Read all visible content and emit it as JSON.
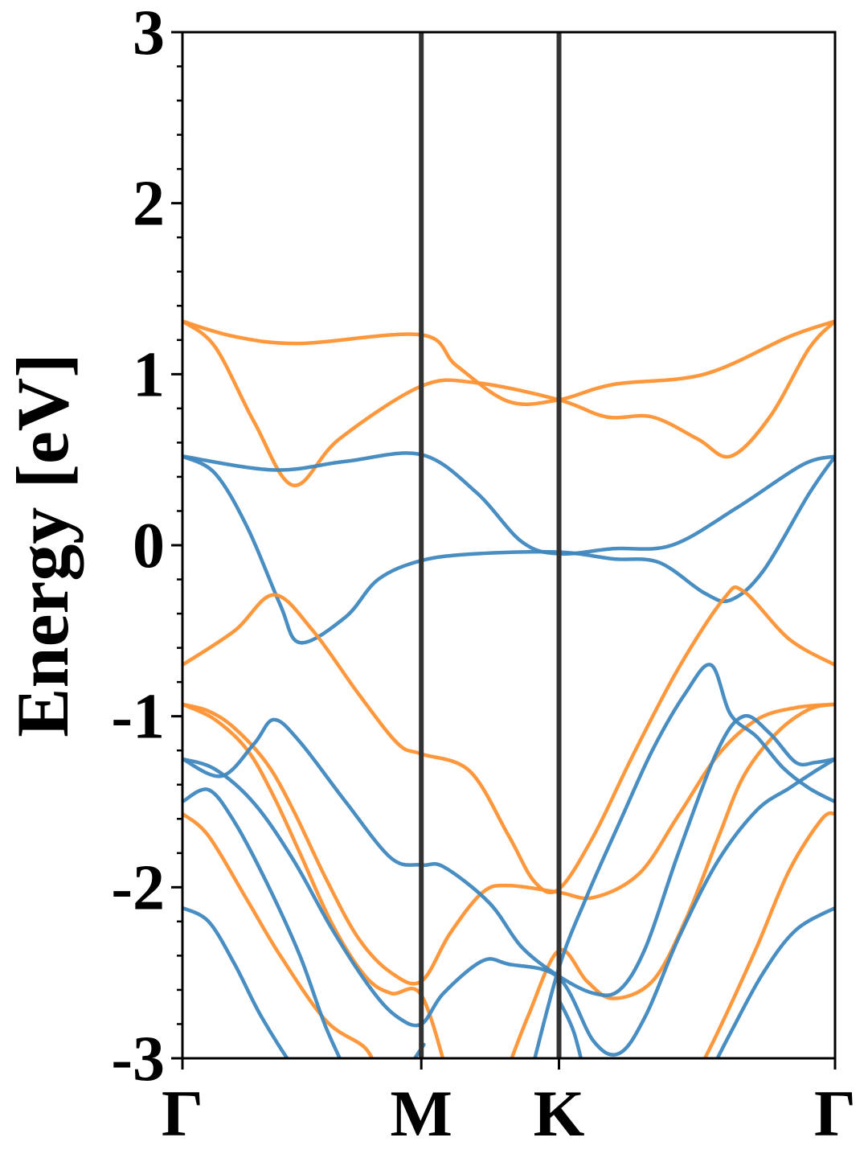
{
  "chart_data": {
    "type": "line",
    "title": "",
    "ylabel": "Energy [eV]",
    "xlabel": "",
    "ylim": [
      -3,
      3
    ],
    "xlim": [
      0,
      1
    ],
    "grid": false,
    "legend": "none",
    "colors": {
      "spin_a": "#3f88bf",
      "spin_b": "#ff9233",
      "kpath_line": "#333333"
    },
    "yticks": [
      -3,
      -2,
      -1,
      0,
      1,
      2,
      3
    ],
    "ytick_labels": [
      "-3",
      "-2",
      "-1",
      "0",
      "1",
      "2",
      "3"
    ],
    "xticks": [
      {
        "label": "Γ",
        "pos": 0.0
      },
      {
        "label": "M",
        "pos": 0.366
      },
      {
        "label": "K",
        "pos": 0.577
      },
      {
        "label": "Γ",
        "pos": 1.0
      }
    ],
    "series": [
      {
        "group": "spin_b",
        "points": [
          [
            0,
            1.31
          ],
          [
            0.08,
            1.22
          ],
          [
            0.18,
            1.18
          ],
          [
            0.366,
            1.23
          ],
          [
            0.42,
            1.05
          ],
          [
            0.5,
            0.84
          ],
          [
            0.577,
            0.85
          ],
          [
            0.66,
            0.94
          ],
          [
            0.8,
            1.0
          ],
          [
            0.93,
            1.22
          ],
          [
            1,
            1.31
          ]
        ]
      },
      {
        "group": "spin_b",
        "points": [
          [
            0,
            1.31
          ],
          [
            0.05,
            1.16
          ],
          [
            0.11,
            0.72
          ],
          [
            0.17,
            0.35
          ],
          [
            0.24,
            0.62
          ],
          [
            0.366,
            0.93
          ],
          [
            0.45,
            0.95
          ],
          [
            0.577,
            0.85
          ],
          [
            0.65,
            0.75
          ],
          [
            0.72,
            0.75
          ],
          [
            0.79,
            0.62
          ],
          [
            0.84,
            0.52
          ],
          [
            0.9,
            0.75
          ],
          [
            0.96,
            1.15
          ],
          [
            1,
            1.31
          ]
        ]
      },
      {
        "group": "spin_a",
        "points": [
          [
            0,
            0.52
          ],
          [
            0.14,
            0.44
          ],
          [
            0.25,
            0.49
          ],
          [
            0.366,
            0.53
          ],
          [
            0.45,
            0.31
          ],
          [
            0.52,
            0.02
          ],
          [
            0.577,
            -0.05
          ],
          [
            0.66,
            -0.02
          ],
          [
            0.75,
            0.0
          ],
          [
            0.85,
            0.22
          ],
          [
            0.95,
            0.47
          ],
          [
            1,
            0.52
          ]
        ]
      },
      {
        "group": "spin_a",
        "points": [
          [
            0,
            0.52
          ],
          [
            0.05,
            0.42
          ],
          [
            0.1,
            0.1
          ],
          [
            0.15,
            -0.35
          ],
          [
            0.18,
            -0.57
          ],
          [
            0.25,
            -0.42
          ],
          [
            0.3,
            -0.2
          ],
          [
            0.366,
            -0.09
          ],
          [
            0.45,
            -0.05
          ],
          [
            0.577,
            -0.04
          ],
          [
            0.66,
            -0.08
          ],
          [
            0.73,
            -0.1
          ],
          [
            0.8,
            -0.28
          ],
          [
            0.84,
            -0.32
          ],
          [
            0.89,
            -0.15
          ],
          [
            0.96,
            0.3
          ],
          [
            1,
            0.52
          ]
        ]
      },
      {
        "group": "spin_b",
        "points": [
          [
            0,
            -0.7
          ],
          [
            0.08,
            -0.5
          ],
          [
            0.14,
            -0.29
          ],
          [
            0.2,
            -0.5
          ],
          [
            0.27,
            -0.87
          ],
          [
            0.33,
            -1.16
          ],
          [
            0.366,
            -1.22
          ],
          [
            0.44,
            -1.32
          ],
          [
            0.5,
            -1.7
          ],
          [
            0.54,
            -1.97
          ],
          [
            0.577,
            -2.01
          ],
          [
            0.63,
            -1.7
          ],
          [
            0.69,
            -1.23
          ],
          [
            0.76,
            -0.72
          ],
          [
            0.83,
            -0.31
          ],
          [
            0.86,
            -0.27
          ],
          [
            0.93,
            -0.55
          ],
          [
            1,
            -0.7
          ]
        ]
      },
      {
        "group": "spin_b",
        "points": [
          [
            0,
            -0.93
          ],
          [
            0.04,
            -0.97
          ],
          [
            0.08,
            -1.07
          ],
          [
            0.13,
            -1.28
          ],
          [
            0.17,
            -1.55
          ],
          [
            0.22,
            -1.95
          ],
          [
            0.27,
            -2.3
          ],
          [
            0.32,
            -2.5
          ],
          [
            0.366,
            -2.55
          ],
          [
            0.41,
            -2.27
          ],
          [
            0.46,
            -2.03
          ],
          [
            0.5,
            -1.99
          ],
          [
            0.577,
            -2.03
          ],
          [
            0.63,
            -2.06
          ],
          [
            0.7,
            -1.92
          ],
          [
            0.76,
            -1.58
          ],
          [
            0.82,
            -1.23
          ],
          [
            0.88,
            -1.02
          ],
          [
            0.94,
            -0.95
          ],
          [
            1,
            -0.93
          ]
        ]
      },
      {
        "group": "spin_b",
        "points": [
          [
            0,
            -0.93
          ],
          [
            0.05,
            -1.02
          ],
          [
            0.1,
            -1.2
          ],
          [
            0.14,
            -1.47
          ],
          [
            0.18,
            -1.8
          ],
          [
            0.23,
            -2.22
          ],
          [
            0.28,
            -2.52
          ],
          [
            0.32,
            -2.62
          ],
          [
            0.366,
            -2.63
          ],
          [
            0.41,
            -3.15
          ]
        ]
      },
      {
        "group": "spin_b",
        "points": [
          [
            0.49,
            -3.15
          ],
          [
            0.53,
            -2.75
          ],
          [
            0.577,
            -2.37
          ],
          [
            0.62,
            -2.55
          ],
          [
            0.66,
            -2.65
          ],
          [
            0.72,
            -2.55
          ],
          [
            0.77,
            -2.2
          ],
          [
            0.82,
            -1.72
          ],
          [
            0.86,
            -1.35
          ],
          [
            0.91,
            -1.1
          ],
          [
            0.96,
            -0.96
          ],
          [
            1,
            -0.93
          ]
        ]
      },
      {
        "group": "spin_b",
        "points": [
          [
            0,
            -1.57
          ],
          [
            0.04,
            -1.7
          ],
          [
            0.1,
            -2.08
          ],
          [
            0.15,
            -2.4
          ],
          [
            0.22,
            -2.78
          ],
          [
            0.28,
            -2.94
          ],
          [
            0.3,
            -3.1
          ]
        ]
      },
      {
        "group": "spin_b",
        "points": [
          [
            0.78,
            -3.15
          ],
          [
            0.82,
            -2.85
          ],
          [
            0.88,
            -2.35
          ],
          [
            0.93,
            -1.9
          ],
          [
            0.98,
            -1.6
          ],
          [
            1,
            -1.57
          ]
        ]
      },
      {
        "group": "spin_a",
        "points": [
          [
            0,
            -1.25
          ],
          [
            0.06,
            -1.35
          ],
          [
            0.11,
            -1.16
          ],
          [
            0.14,
            -1.02
          ],
          [
            0.18,
            -1.15
          ],
          [
            0.25,
            -1.5
          ],
          [
            0.32,
            -1.83
          ],
          [
            0.366,
            -1.87
          ],
          [
            0.4,
            -1.88
          ],
          [
            0.47,
            -2.09
          ],
          [
            0.52,
            -2.35
          ],
          [
            0.577,
            -2.52
          ],
          [
            0.63,
            -2.62
          ],
          [
            0.67,
            -2.6
          ],
          [
            0.71,
            -2.35
          ],
          [
            0.76,
            -1.8
          ],
          [
            0.82,
            -1.2
          ],
          [
            0.86,
            -1.0
          ],
          [
            0.9,
            -1.1
          ],
          [
            0.94,
            -1.27
          ],
          [
            0.97,
            -1.27
          ],
          [
            1,
            -1.25
          ]
        ]
      },
      {
        "group": "spin_a",
        "points": [
          [
            0,
            -1.25
          ],
          [
            0.05,
            -1.31
          ],
          [
            0.11,
            -1.51
          ],
          [
            0.17,
            -1.84
          ],
          [
            0.23,
            -2.25
          ],
          [
            0.29,
            -2.6
          ],
          [
            0.33,
            -2.76
          ],
          [
            0.366,
            -2.8
          ],
          [
            0.4,
            -2.62
          ],
          [
            0.46,
            -2.43
          ],
          [
            0.5,
            -2.45
          ],
          [
            0.577,
            -2.53
          ],
          [
            0.63,
            -2.9
          ],
          [
            0.67,
            -2.97
          ],
          [
            0.71,
            -2.75
          ],
          [
            0.76,
            -2.3
          ],
          [
            0.82,
            -1.85
          ],
          [
            0.88,
            -1.55
          ],
          [
            0.93,
            -1.42
          ],
          [
            0.97,
            -1.32
          ],
          [
            1,
            -1.25
          ]
        ]
      },
      {
        "group": "spin_a",
        "points": [
          [
            0,
            -1.5
          ],
          [
            0.04,
            -1.43
          ],
          [
            0.08,
            -1.62
          ],
          [
            0.13,
            -1.98
          ],
          [
            0.18,
            -2.4
          ],
          [
            0.22,
            -2.82
          ],
          [
            0.26,
            -3.15
          ]
        ]
      },
      {
        "group": "spin_a",
        "points": [
          [
            0.53,
            -3.15
          ],
          [
            0.577,
            -2.47
          ],
          [
            0.62,
            -2.05
          ],
          [
            0.67,
            -1.62
          ],
          [
            0.72,
            -1.2
          ],
          [
            0.77,
            -0.87
          ],
          [
            0.81,
            -0.7
          ],
          [
            0.84,
            -0.99
          ],
          [
            0.88,
            -1.12
          ],
          [
            0.92,
            -1.3
          ],
          [
            0.96,
            -1.42
          ],
          [
            1,
            -1.5
          ]
        ]
      },
      {
        "group": "spin_a",
        "points": [
          [
            0,
            -2.12
          ],
          [
            0.04,
            -2.2
          ],
          [
            0.08,
            -2.45
          ],
          [
            0.12,
            -2.75
          ],
          [
            0.17,
            -3.05
          ],
          [
            0.2,
            -3.15
          ]
        ]
      },
      {
        "group": "spin_a",
        "points": [
          [
            0.8,
            -3.15
          ],
          [
            0.84,
            -2.85
          ],
          [
            0.89,
            -2.5
          ],
          [
            0.94,
            -2.25
          ],
          [
            1,
            -2.12
          ]
        ]
      },
      {
        "group": "spin_a",
        "points": [
          [
            0.33,
            -3.15
          ],
          [
            0.37,
            -2.92
          ]
        ]
      },
      {
        "group": "spin_a",
        "points": [
          [
            0.577,
            -2.66
          ],
          [
            0.6,
            -2.85
          ],
          [
            0.62,
            -3.15
          ]
        ]
      }
    ]
  }
}
